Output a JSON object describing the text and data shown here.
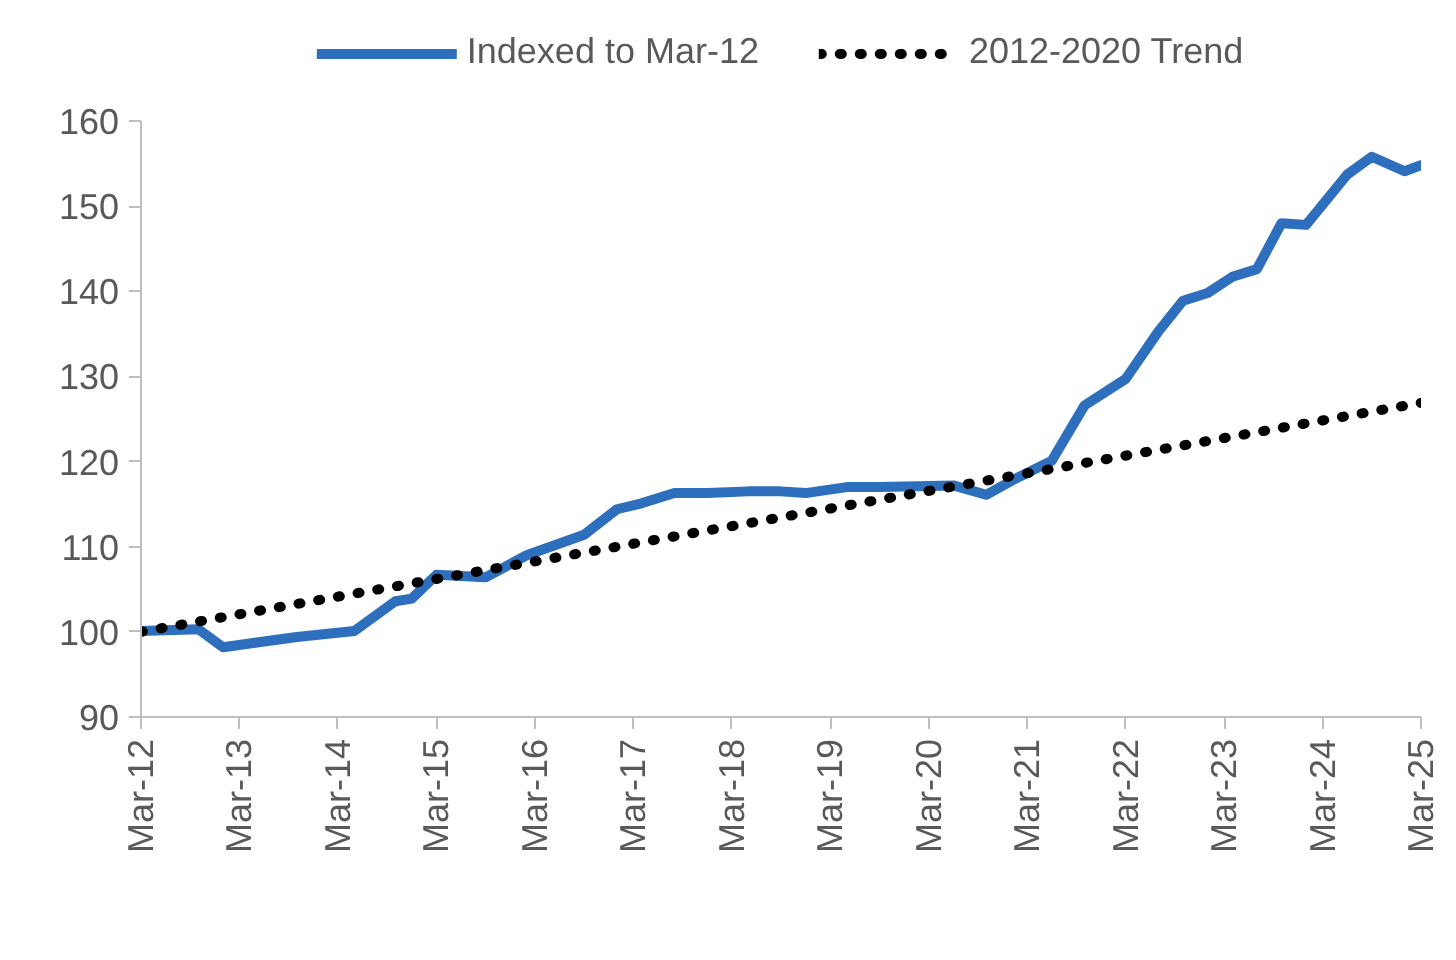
{
  "chart_data": {
    "type": "line",
    "x": [
      "2012-03",
      "2012-10",
      "2013-01",
      "2013-10",
      "2014-05",
      "2014-10",
      "2014-12",
      "2015-03",
      "2015-09",
      "2016-02",
      "2016-09",
      "2017-01",
      "2017-04",
      "2017-08",
      "2017-12",
      "2018-05",
      "2018-09",
      "2018-12",
      "2019-05",
      "2019-09",
      "2020-06",
      "2020-10",
      "2021-02",
      "2021-06",
      "2021-10",
      "2022-03",
      "2022-07",
      "2022-10",
      "2023-01",
      "2023-04",
      "2023-07",
      "2023-10",
      "2024-01",
      "2024-06",
      "2024-09",
      "2025-01",
      "2025-03"
    ],
    "series": [
      {
        "name": "Indexed to Mar-12",
        "color": "#2e6fbd",
        "line_style": "solid",
        "values": [
          100.1,
          100.3,
          98.2,
          99.4,
          100.1,
          103.6,
          103.9,
          106.7,
          106.4,
          109.0,
          111.4,
          114.4,
          115.1,
          116.3,
          116.3,
          116.5,
          116.5,
          116.3,
          117.0,
          117.0,
          117.2,
          116.1,
          118.2,
          120.1,
          126.6,
          129.7,
          135.3,
          138.9,
          139.8,
          141.7,
          142.6,
          148.0,
          147.8,
          153.7,
          155.8,
          154.1,
          154.8
        ]
      },
      {
        "name": "2012-2020 Trend",
        "type": "line",
        "color": "#000000",
        "line_style": "dotted",
        "x": [
          "2012-03",
          "2025-03"
        ],
        "values": [
          100.0,
          126.9
        ]
      }
    ],
    "xlim": [
      "2012-03",
      "2025-03"
    ],
    "xticks": [
      {
        "value": "2012-03",
        "label": "Mar-12"
      },
      {
        "value": "2013-03",
        "label": "Mar-13"
      },
      {
        "value": "2014-03",
        "label": "Mar-14"
      },
      {
        "value": "2015-03",
        "label": "Mar-15"
      },
      {
        "value": "2016-03",
        "label": "Mar-16"
      },
      {
        "value": "2017-03",
        "label": "Mar-17"
      },
      {
        "value": "2018-03",
        "label": "Mar-18"
      },
      {
        "value": "2019-03",
        "label": "Mar-19"
      },
      {
        "value": "2020-03",
        "label": "Mar-20"
      },
      {
        "value": "2021-03",
        "label": "Mar-21"
      },
      {
        "value": "2022-03",
        "label": "Mar-22"
      },
      {
        "value": "2023-03",
        "label": "Mar-23"
      },
      {
        "value": "2024-03",
        "label": "Mar-24"
      },
      {
        "value": "2025-03",
        "label": "Mar-25"
      }
    ],
    "ylim": [
      90,
      160
    ],
    "yticks": [
      90,
      100,
      110,
      120,
      130,
      140,
      150,
      160
    ],
    "grid": false,
    "legend": "top",
    "marker": "none"
  }
}
